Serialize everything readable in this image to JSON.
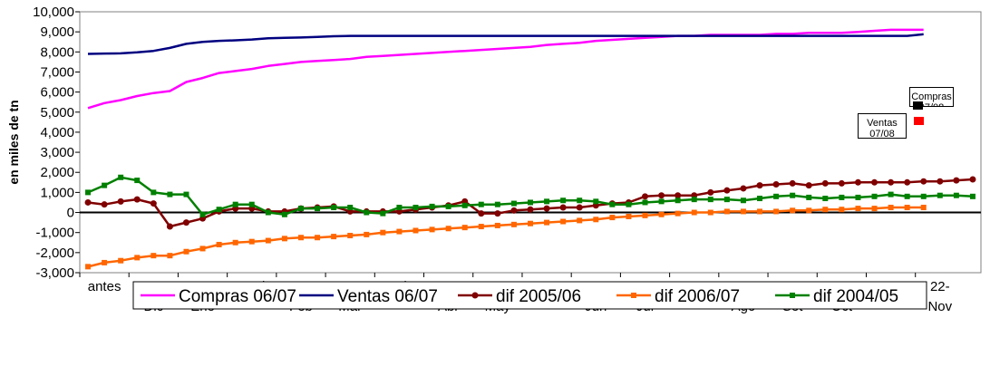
{
  "chart_data": {
    "type": "line",
    "y_label": "en miles de tn",
    "ylim": [
      -3000,
      10000
    ],
    "yticks": [
      {
        "value": -3000,
        "label": "-3,000"
      },
      {
        "value": -2000,
        "label": "-2,000"
      },
      {
        "value": -1000,
        "label": "-1,000"
      },
      0,
      {
        "value": 1000,
        "label": "1,000"
      },
      {
        "value": 2000,
        "label": "2,000"
      },
      {
        "value": 3000,
        "label": "3,000"
      },
      {
        "value": 4000,
        "label": "4,000"
      },
      {
        "value": 5000,
        "label": "5,000"
      },
      {
        "value": 6000,
        "label": "6,000"
      },
      {
        "value": 7000,
        "label": "7,000"
      },
      {
        "value": 8000,
        "label": "8,000"
      },
      {
        "value": 9000,
        "label": "9,000"
      },
      {
        "value": 10000,
        "label": "10,000"
      }
    ],
    "grid": false,
    "legend": "bottom",
    "categories": [
      "antes",
      null,
      null,
      "20-Dic",
      null,
      null,
      "12-Ene",
      null,
      null,
      "2-Feb",
      null,
      null,
      "23-Feb",
      null,
      null,
      "15-Mar",
      null,
      null,
      "5-Abr",
      null,
      null,
      "26-Abr",
      null,
      null,
      "17-May",
      null,
      null,
      "7-Jun",
      null,
      null,
      "28-Jun",
      null,
      null,
      "19-Jul",
      null,
      null,
      "9-Ago",
      null,
      null,
      "30-Ago",
      null,
      null,
      "20-Set",
      null,
      null,
      "11-Oct",
      null,
      null,
      "1-Nov",
      null,
      null,
      "22-Nov",
      null,
      null,
      null
    ],
    "series": [
      {
        "name": "Compras 06/07",
        "color": "#ff00ff",
        "marker": "none",
        "values": [
          5200,
          5450,
          5600,
          5800,
          5950,
          6050,
          6500,
          6700,
          6950,
          7050,
          7150,
          7300,
          7400,
          7500,
          7550,
          7600,
          7650,
          7750,
          7800,
          7850,
          7900,
          7950,
          8000,
          8050,
          8100,
          8150,
          8200,
          8250,
          8350,
          8400,
          8450,
          8550,
          8600,
          8650,
          8700,
          8750,
          8800,
          8800,
          8850,
          8850,
          8850,
          8850,
          8900,
          8900,
          8950,
          8950,
          8950,
          9000,
          9050,
          9100,
          9100,
          9100,
          null,
          null,
          null
        ]
      },
      {
        "name": "Ventas 06/07",
        "color": "#000080",
        "marker": "none",
        "values": [
          7900,
          7920,
          7930,
          7980,
          8050,
          8200,
          8400,
          8500,
          8550,
          8580,
          8620,
          8680,
          8700,
          8720,
          8750,
          8780,
          8800,
          8800,
          8800,
          8800,
          8800,
          8800,
          8800,
          8800,
          8800,
          8800,
          8800,
          8800,
          8800,
          8800,
          8800,
          8800,
          8800,
          8800,
          8800,
          8800,
          8800,
          8800,
          8800,
          8800,
          8800,
          8800,
          8800,
          8800,
          8800,
          8800,
          8800,
          8800,
          8800,
          8800,
          8800,
          8880,
          null,
          null,
          null
        ]
      },
      {
        "name": "dif 2005/06",
        "color": "#800000",
        "marker": "circle",
        "values": [
          500,
          400,
          550,
          650,
          450,
          -700,
          -500,
          -300,
          50,
          200,
          200,
          50,
          50,
          200,
          250,
          300,
          50,
          50,
          50,
          50,
          150,
          250,
          350,
          550,
          -50,
          -50,
          100,
          150,
          200,
          250,
          250,
          350,
          450,
          500,
          800,
          850,
          850,
          850,
          1000,
          1100,
          1200,
          1350,
          1400,
          1450,
          1350,
          1450,
          1450,
          1500,
          1500,
          1500,
          1500,
          1550,
          1550,
          1600,
          1650
        ]
      },
      {
        "name": "dif 2006/07",
        "color": "#ff6600",
        "marker": "square",
        "values": [
          -2700,
          -2500,
          -2400,
          -2250,
          -2150,
          -2150,
          -1950,
          -1800,
          -1600,
          -1500,
          -1450,
          -1400,
          -1300,
          -1250,
          -1250,
          -1200,
          -1150,
          -1100,
          -1000,
          -950,
          -900,
          -850,
          -800,
          -750,
          -700,
          -650,
          -600,
          -550,
          -500,
          -450,
          -400,
          -350,
          -250,
          -200,
          -150,
          -100,
          -50,
          0,
          0,
          50,
          50,
          50,
          50,
          100,
          100,
          150,
          150,
          200,
          200,
          250,
          250,
          250,
          null,
          null,
          null
        ]
      },
      {
        "name": "dif 2004/05",
        "color": "#008000",
        "marker": "square",
        "values": [
          1000,
          1350,
          1750,
          1600,
          1000,
          900,
          900,
          -100,
          150,
          400,
          400,
          0,
          -100,
          200,
          200,
          250,
          250,
          0,
          -50,
          250,
          250,
          300,
          300,
          350,
          400,
          400,
          450,
          500,
          550,
          600,
          600,
          550,
          400,
          400,
          500,
          550,
          600,
          650,
          650,
          650,
          600,
          700,
          800,
          850,
          750,
          700,
          750,
          750,
          800,
          900,
          800,
          800,
          850,
          850,
          800
        ]
      }
    ],
    "annotations": [
      {
        "text": "Compras 07/08",
        "color": "#000000"
      },
      {
        "text": "Ventas 07/08",
        "color": "#ff0000"
      }
    ]
  }
}
